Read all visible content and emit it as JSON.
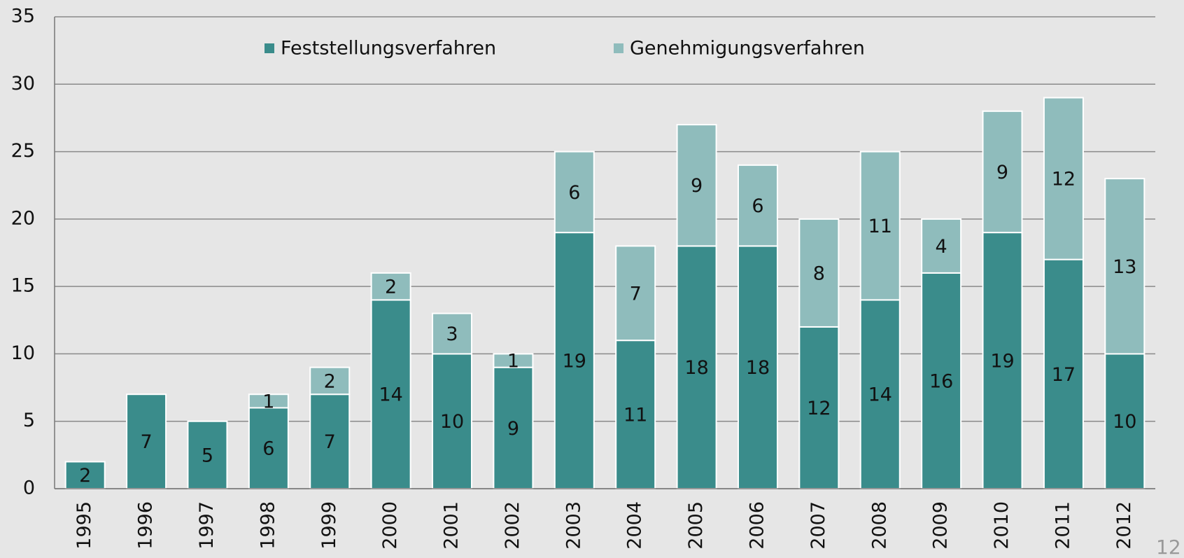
{
  "chart_data": {
    "type": "stacked_bar",
    "categories": [
      "1995",
      "1996",
      "1997",
      "1998",
      "1999",
      "2000",
      "2001",
      "2002",
      "2003",
      "2004",
      "2005",
      "2006",
      "2007",
      "2008",
      "2009",
      "2010",
      "2011",
      "2012"
    ],
    "series": [
      {
        "name": "Feststellungsverfahren",
        "color": "#3a8c8b",
        "values": [
          2,
          7,
          5,
          6,
          7,
          14,
          10,
          9,
          19,
          11,
          18,
          18,
          12,
          14,
          16,
          19,
          17,
          10
        ]
      },
      {
        "name": "Genehmigungsverfahren",
        "color": "#8fbcbc",
        "values": [
          null,
          null,
          null,
          1,
          2,
          2,
          3,
          1,
          6,
          7,
          9,
          6,
          8,
          11,
          4,
          9,
          12,
          13
        ]
      }
    ],
    "ylim": [
      0,
      35
    ],
    "yticks": [
      0,
      5,
      10,
      15,
      20,
      25,
      30,
      35
    ],
    "grid": true,
    "legend": "top"
  },
  "page_number": "12"
}
